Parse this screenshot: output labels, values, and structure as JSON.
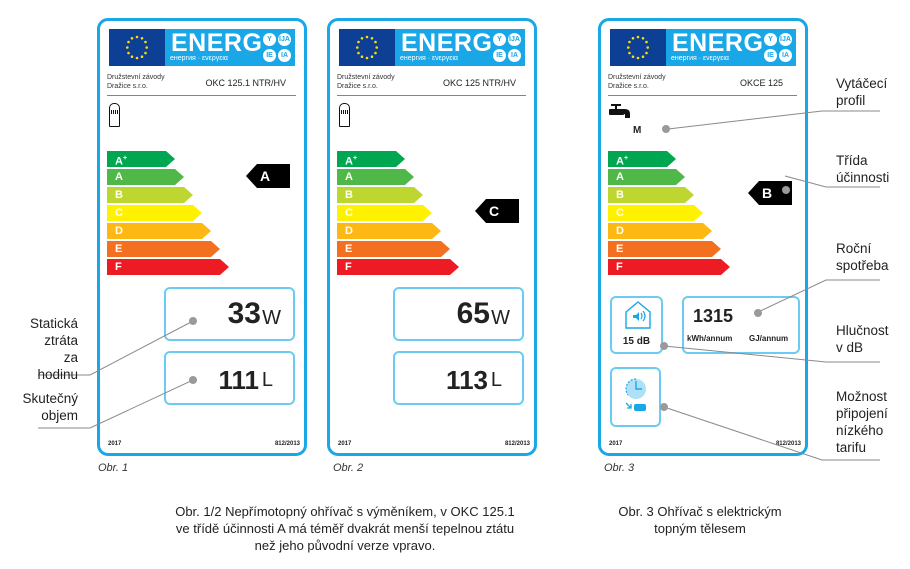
{
  "colors": {
    "label_border": "#1aa7e8",
    "eu_blue": "#0d3f94",
    "energ_blue": "#1aa7e8",
    "box_border": "#6ccbf2",
    "leader_line": "#8a8a8a"
  },
  "energy_scale": [
    {
      "label": "A+",
      "color": "#00a650"
    },
    {
      "label": "A",
      "color": "#50b848"
    },
    {
      "label": "B",
      "color": "#bed630"
    },
    {
      "label": "C",
      "color": "#fff200"
    },
    {
      "label": "D",
      "color": "#fdb813"
    },
    {
      "label": "E",
      "color": "#f37021"
    },
    {
      "label": "F",
      "color": "#ed1c24"
    }
  ],
  "labels": [
    {
      "energ": "ENERG",
      "energ_sub": "енергия · ενεργεια",
      "lang_y": "Y",
      "lang_ija": "IJA",
      "lang_ie": "IE",
      "lang_ia": "IA",
      "maker_line1": "Družstevní závody",
      "maker_line2": "Dražice s.r.o.",
      "model": "OKC 125.1 NTR/HV",
      "energy_class": "A",
      "heat_loss_value": "33",
      "heat_loss_unit": "W",
      "volume_value": "111",
      "volume_unit": "L",
      "year": "2017",
      "regulation": "812/2013",
      "caption": "Obr. 1"
    },
    {
      "energ": "ENERG",
      "energ_sub": "енергия · ενεργεια",
      "lang_y": "Y",
      "lang_ija": "IJA",
      "lang_ie": "IE",
      "lang_ia": "IA",
      "maker_line1": "Družstevní závody",
      "maker_line2": "Dražice s.r.o.",
      "model": "OKC 125 NTR/HV",
      "energy_class": "C",
      "heat_loss_value": "65",
      "heat_loss_unit": "W",
      "volume_value": "113",
      "volume_unit": "L",
      "year": "2017",
      "regulation": "812/2013",
      "caption": "Obr. 2"
    },
    {
      "energ": "ENERG",
      "energ_sub": "енергия · ενεργεια",
      "lang_y": "Y",
      "lang_ija": "IJA",
      "lang_ie": "IE",
      "lang_ia": "IA",
      "maker_line1": "Družstevní závody",
      "maker_line2": "Dražice s.r.o.",
      "model": "OKCE 125",
      "tapping_profile": "M",
      "energy_class": "B",
      "annual_consumption_value": "1315",
      "annual_consumption_unit_kwh": "kWh/annum",
      "annual_consumption_unit_gj": "GJ/annum",
      "noise_value": "15 dB",
      "year": "2017",
      "regulation": "812/2013",
      "caption": "Obr. 3"
    }
  ],
  "annotations_left": {
    "static_loss": [
      "Statická",
      "ztráta",
      "za hodinu"
    ],
    "actual_volume": [
      "Skutečný",
      "objem"
    ]
  },
  "annotations_right": {
    "tapping_profile": [
      "Vytáčecí",
      "profil"
    ],
    "efficiency_class": [
      "Třída",
      "účinnosti"
    ],
    "annual_consumption": [
      "Roční",
      "spotřeba"
    ],
    "noise": [
      "Hlučnost",
      "v dB"
    ],
    "low_tariff": [
      "Možnost",
      "připojení",
      "nízkého",
      "tarifu"
    ]
  },
  "descriptions": {
    "left": [
      "Obr. 1/2 Nepřímotopný ohřívač s výměníkem, v OKC 125.1",
      "ve třídě účinnosti A má téměř dvakrát menší tepelnou ztátu",
      "než jeho původní verze vpravo."
    ],
    "right": [
      "Obr. 3 Ohřívač s elektrickým",
      "topným tělesem"
    ]
  }
}
